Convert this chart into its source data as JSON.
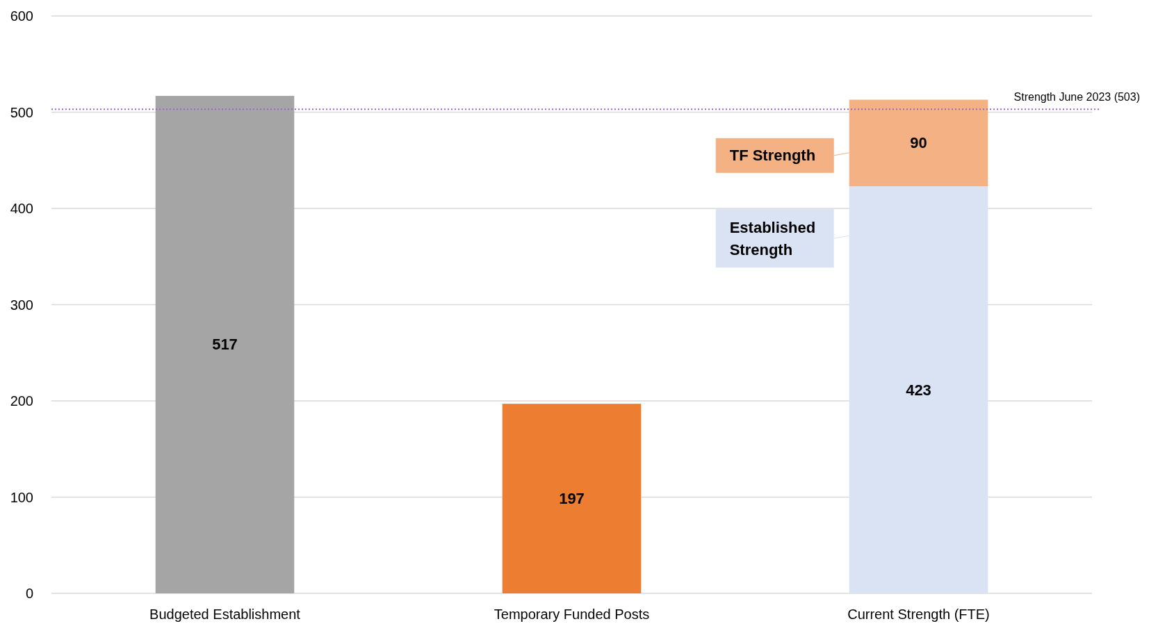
{
  "chart_data": {
    "type": "bar",
    "stacked": true,
    "categories": [
      "Budgeted Establishment",
      "Temporary Funded Posts",
      "Current Strength (FTE)"
    ],
    "series": [
      {
        "colors": [
          "#a5a5a5",
          "#ed7d31",
          null
        ],
        "values": [
          517,
          197,
          null
        ]
      },
      {
        "name": "Established Strength",
        "color": "#dae3f3",
        "values": [
          null,
          null,
          423
        ]
      },
      {
        "name": "TF Strength",
        "color": "#f4b183",
        "values": [
          null,
          null,
          90
        ]
      }
    ],
    "ylim": [
      0,
      600
    ],
    "yticks": [
      0,
      100,
      200,
      300,
      400,
      500,
      600
    ],
    "grid": "y",
    "legend": "right",
    "data_labels": true,
    "ref_lines": [
      {
        "axis": "y",
        "value": 503,
        "label": "Strength June 2023 (503)",
        "color": "#9966cc",
        "line_style": "dotted"
      }
    ]
  }
}
